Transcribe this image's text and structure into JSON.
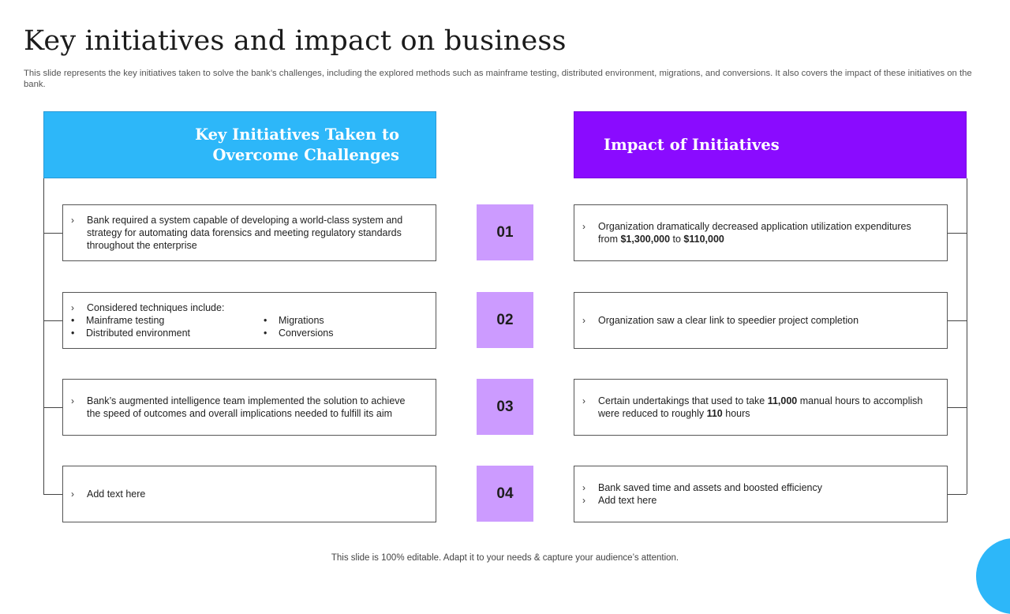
{
  "slide": {
    "title": "Key initiatives and impact on business",
    "subtitle": "This slide represents the key initiatives taken to solve the bank’s challenges, including the explored methods such as mainframe testing, distributed environment, migrations, and conversions. It also covers the impact of these initiatives on the bank.",
    "footer": "This slide is 100% editable. Adapt it to your needs & capture your audience’s attention."
  },
  "left_header": {
    "line1": "Key Initiatives Taken to",
    "line2": "Overcome Challenges"
  },
  "right_header": {
    "label": "Impact of Initiatives"
  },
  "chevron": "›",
  "bullet": "•",
  "initiatives": [
    {
      "text": "Bank required a system capable of developing a world-class system and strategy for automating data forensics and meeting regulatory standards throughout the enterprise"
    },
    {
      "text": "Considered techniques include:",
      "techniques_col1": [
        "Mainframe testing",
        "Distributed environment"
      ],
      "techniques_col2": [
        "Migrations",
        "Conversions"
      ]
    },
    {
      "text": "Bank’s augmented intelligence team implemented the solution to achieve the speed of outcomes and overall implications needed to fulfill its aim"
    },
    {
      "text": "Add text here"
    }
  ],
  "numbers": [
    "01",
    "02",
    "03",
    "04"
  ],
  "impacts": [
    {
      "pre": "Organization dramatically decreased application utilization expenditures from ",
      "bold1": "$1,300,000",
      "mid": " to ",
      "bold2": "$110,000"
    },
    {
      "text": "Organization saw a clear link to speedier project completion"
    },
    {
      "pre": "Certain undertakings that used to take ",
      "bold1": "11,000",
      "mid": " manual hours to accomplish were reduced to roughly ",
      "bold2": "110",
      "post": " hours"
    },
    {
      "line1": "Bank saved time and assets and boosted efficiency",
      "line2": "Add text here"
    }
  ],
  "colors": {
    "left_header": "#2db7f9",
    "right_header": "#8a0bff",
    "number_box": "#cc9bff"
  }
}
